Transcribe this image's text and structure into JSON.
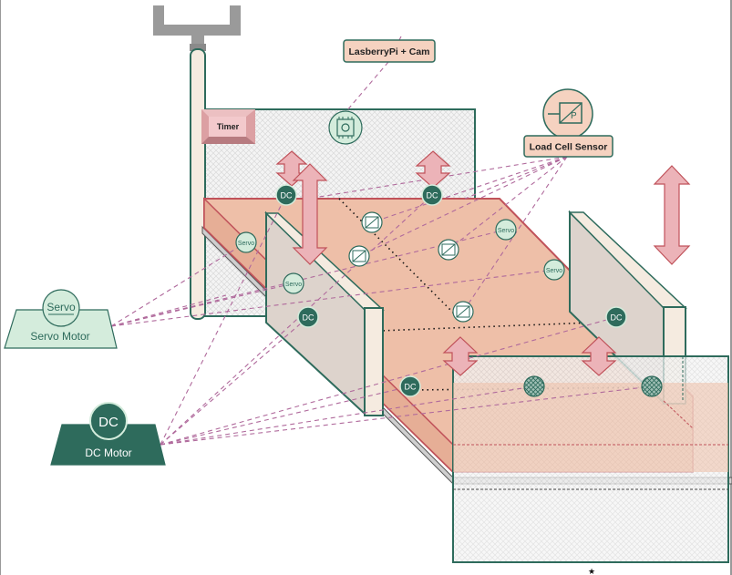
{
  "labels": {
    "camera": "LasberryPi + Cam",
    "load_cell": "Load Cell Sensor",
    "timer": "Timer",
    "servo_legend_badge": "Servo",
    "servo_legend": "Servo Motor",
    "dc_legend_badge": "DC",
    "dc_legend": "DC Motor",
    "dc_badge": "DC",
    "servo_badge": "Servo"
  },
  "colors": {
    "teal_dark": "#2e6b5c",
    "teal_light": "#d4ecdc",
    "pink": "#ecb3b8",
    "salmon": "#eebfa8",
    "connector": "#b06a9c"
  }
}
